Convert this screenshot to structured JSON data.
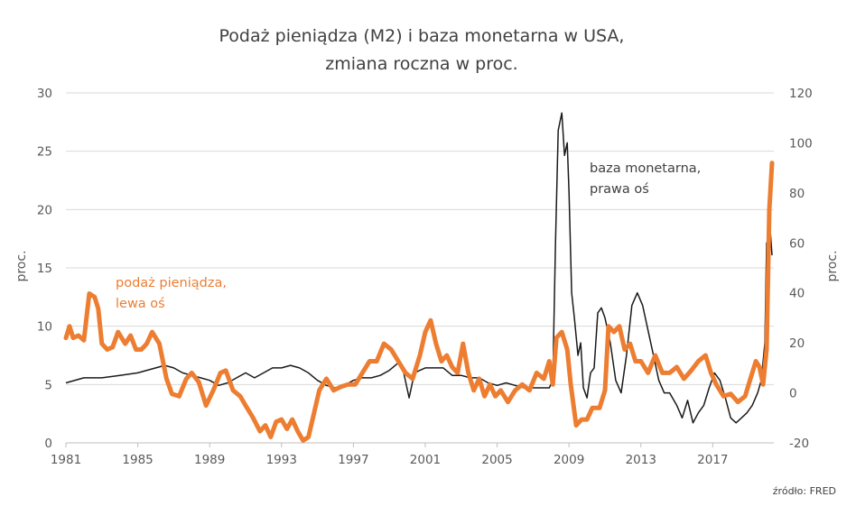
{
  "chart_data": {
    "type": "line",
    "title": [
      "Podaż pieniądza (M2) i baza monetarna w USA,",
      "zmiana roczna w proc."
    ],
    "ylabel_left": "proc.",
    "ylabel_right": "proc.",
    "source": "źródło: FRED",
    "xlim": [
      1981,
      2020.4
    ],
    "xticks": [
      1981,
      1985,
      1989,
      1993,
      1997,
      2001,
      2005,
      2009,
      2013,
      2017
    ],
    "ylim_left": [
      0,
      30
    ],
    "yticks_left": [
      0,
      5,
      10,
      15,
      20,
      25,
      30
    ],
    "ylim_right": [
      -20,
      120
    ],
    "yticks_right": [
      -20,
      0,
      20,
      40,
      60,
      80,
      100,
      120
    ],
    "grid": true,
    "colors": {
      "m2": "#ED7D31",
      "base": "#1a1a1a"
    },
    "annotations": [
      {
        "lines": [
          "podaż pieniądza,",
          "lewa oś"
        ],
        "series": "m2"
      },
      {
        "lines": [
          "baza monetarna,",
          "prawa oś"
        ],
        "series": "base"
      }
    ],
    "series": [
      {
        "name": "M2",
        "axis": "left",
        "x": [
          1981.0,
          1981.2,
          1981.4,
          1981.7,
          1982.0,
          1982.3,
          1982.6,
          1982.8,
          1983.0,
          1983.3,
          1983.6,
          1983.9,
          1984.3,
          1984.6,
          1984.9,
          1985.2,
          1985.5,
          1985.8,
          1986.2,
          1986.6,
          1986.9,
          1987.3,
          1987.7,
          1988.0,
          1988.4,
          1988.8,
          1989.2,
          1989.6,
          1989.9,
          1990.3,
          1990.7,
          1991.0,
          1991.4,
          1991.8,
          1992.1,
          1992.4,
          1992.7,
          1993.0,
          1993.3,
          1993.6,
          1993.9,
          1994.2,
          1994.5,
          1994.8,
          1995.1,
          1995.5,
          1995.9,
          1996.3,
          1996.7,
          1997.1,
          1997.5,
          1997.9,
          1998.3,
          1998.7,
          1999.1,
          1999.5,
          1999.9,
          2000.3,
          2000.7,
          2001.0,
          2001.3,
          2001.6,
          2001.9,
          2002.2,
          2002.5,
          2002.8,
          2003.1,
          2003.4,
          2003.7,
          2004.0,
          2004.3,
          2004.6,
          2004.9,
          2005.2,
          2005.6,
          2006.0,
          2006.4,
          2006.8,
          2007.2,
          2007.6,
          2007.9,
          2008.1,
          2008.3,
          2008.6,
          2008.9,
          2009.1,
          2009.4,
          2009.7,
          2010.0,
          2010.3,
          2010.7,
          2011.0,
          2011.2,
          2011.5,
          2011.8,
          2012.1,
          2012.4,
          2012.7,
          2013.0,
          2013.4,
          2013.8,
          2014.2,
          2014.6,
          2015.0,
          2015.4,
          2015.8,
          2016.2,
          2016.6,
          2016.9,
          2017.2,
          2017.6,
          2018.0,
          2018.4,
          2018.8,
          2019.1,
          2019.4,
          2019.6,
          2019.8,
          2020.0,
          2020.15,
          2020.3
        ],
        "values": [
          9.0,
          10.0,
          9.0,
          9.2,
          8.8,
          12.8,
          12.5,
          11.5,
          8.5,
          8.0,
          8.2,
          9.5,
          8.5,
          9.2,
          8.0,
          8.0,
          8.5,
          9.5,
          8.5,
          5.5,
          4.2,
          4.0,
          5.5,
          6.0,
          5.2,
          3.2,
          4.5,
          6.0,
          6.2,
          4.5,
          4.0,
          3.2,
          2.2,
          1.0,
          1.5,
          0.5,
          1.8,
          2.0,
          1.2,
          2.0,
          1.0,
          0.2,
          0.5,
          2.5,
          4.5,
          5.5,
          4.5,
          4.8,
          5.0,
          5.0,
          6.0,
          7.0,
          7.0,
          8.5,
          8.0,
          7.0,
          6.0,
          5.5,
          7.5,
          9.5,
          10.5,
          8.5,
          7.0,
          7.5,
          6.5,
          6.0,
          8.5,
          6.0,
          4.5,
          5.5,
          4.0,
          5.0,
          4.0,
          4.5,
          3.5,
          4.5,
          5.0,
          4.5,
          6.0,
          5.5,
          7.0,
          5.0,
          9.0,
          9.5,
          8.0,
          5.0,
          1.5,
          2.0,
          2.0,
          3.0,
          3.0,
          4.5,
          10.0,
          9.5,
          10.0,
          8.0,
          8.5,
          7.0,
          7.0,
          6.0,
          7.5,
          6.0,
          6.0,
          6.5,
          5.5,
          6.2,
          7.0,
          7.5,
          6.0,
          5.0,
          4.0,
          4.2,
          3.5,
          4.0,
          5.5,
          7.0,
          6.5,
          5.0,
          8.0,
          20.0,
          24.0
        ]
      },
      {
        "name": "baza monetarna",
        "axis": "right",
        "x": [
          1981.0,
          1982.0,
          1983.0,
          1984.0,
          1985.0,
          1986.0,
          1986.5,
          1987.0,
          1987.5,
          1988.0,
          1988.5,
          1989.0,
          1989.5,
          1990.0,
          1990.5,
          1991.0,
          1991.5,
          1992.0,
          1992.5,
          1993.0,
          1993.5,
          1994.0,
          1994.5,
          1995.0,
          1995.5,
          1996.0,
          1996.5,
          1997.0,
          1997.5,
          1998.0,
          1998.5,
          1999.0,
          1999.5,
          1999.8,
          2000.1,
          2000.4,
          2000.7,
          2001.0,
          2001.5,
          2002.0,
          2002.5,
          2003.0,
          2003.5,
          2004.0,
          2004.5,
          2005.0,
          2005.5,
          2006.0,
          2006.5,
          2007.0,
          2007.5,
          2007.9,
          2008.1,
          2008.25,
          2008.4,
          2008.6,
          2008.75,
          2008.9,
          2009.0,
          2009.15,
          2009.3,
          2009.5,
          2009.65,
          2009.8,
          2010.0,
          2010.2,
          2010.4,
          2010.6,
          2010.8,
          2011.0,
          2011.3,
          2011.6,
          2011.9,
          2012.2,
          2012.5,
          2012.8,
          2013.1,
          2013.4,
          2013.7,
          2014.0,
          2014.3,
          2014.6,
          2015.0,
          2015.3,
          2015.6,
          2015.9,
          2016.2,
          2016.5,
          2016.8,
          2017.1,
          2017.4,
          2017.7,
          2018.0,
          2018.3,
          2018.6,
          2018.9,
          2019.2,
          2019.5,
          2019.7,
          2019.9,
          2020.0,
          2020.1,
          2020.2,
          2020.3
        ],
        "values": [
          4,
          6,
          6,
          7,
          8,
          10,
          11,
          10,
          8,
          7,
          6,
          5,
          3,
          4,
          6,
          8,
          6,
          8,
          10,
          10,
          11,
          10,
          8,
          5,
          3,
          2,
          3,
          5,
          6,
          6,
          7,
          9,
          12,
          8,
          -2,
          8,
          9,
          10,
          10,
          10,
          7,
          7,
          6,
          6,
          4,
          3,
          4,
          3,
          2,
          2,
          2,
          2,
          5,
          60,
          105,
          112,
          95,
          100,
          80,
          40,
          30,
          15,
          20,
          2,
          -2,
          8,
          10,
          32,
          34,
          30,
          20,
          5,
          0,
          15,
          35,
          40,
          35,
          25,
          15,
          5,
          0,
          0,
          -5,
          -10,
          -3,
          -12,
          -8,
          -5,
          2,
          8,
          5,
          -2,
          -10,
          -12,
          -10,
          -8,
          -5,
          0,
          5,
          20,
          60,
          50,
          65,
          55
        ]
      }
    ]
  }
}
